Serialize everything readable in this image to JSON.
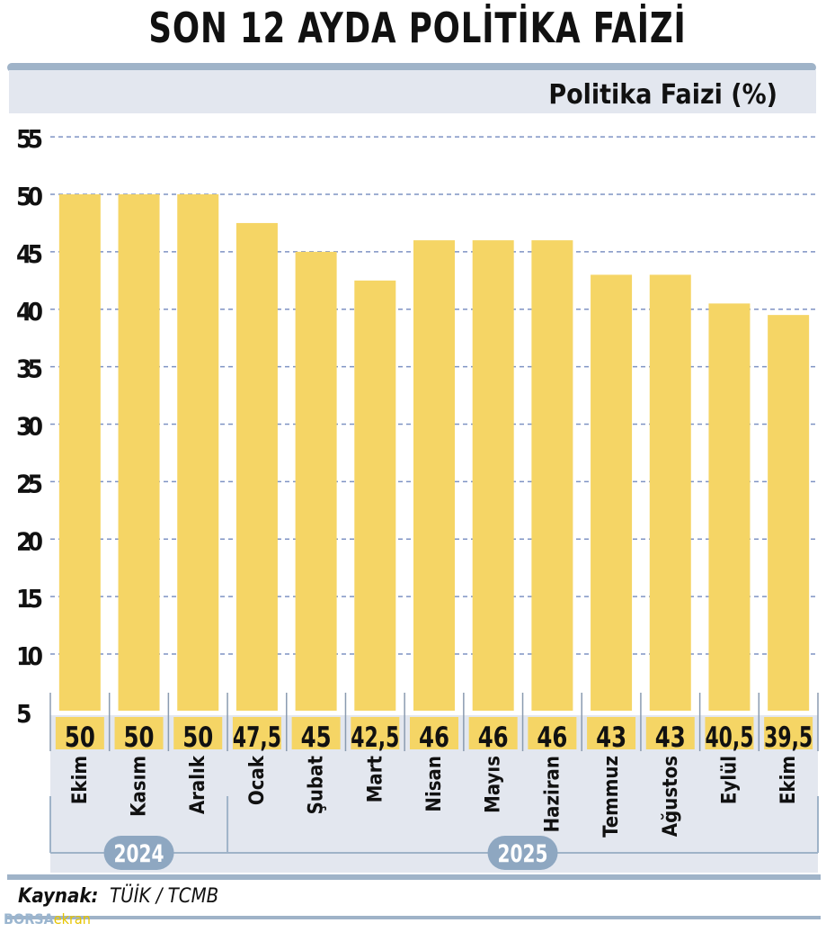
{
  "title": "SON 12 AYDA POLİTİKA FAİZİ",
  "source": {
    "label": "Kaynak:",
    "text": "TÜİK / TCMB"
  },
  "logo": {
    "part1": "BORSA",
    "part2": "ekran"
  },
  "colors": {
    "bar": "#f5d565",
    "panel": "#e3e7ef",
    "frame": "#9fb3c8",
    "grid": "#7f93c4",
    "year_badge": "#8ea7c1"
  },
  "chart_data": {
    "type": "bar",
    "ylabel": "Politika Faizi (%)",
    "xlabel": "",
    "ylim": [
      0,
      55
    ],
    "yticks": [
      5,
      10,
      15,
      20,
      25,
      30,
      35,
      40,
      45,
      50,
      55
    ],
    "grid": true,
    "categories": [
      "Ekim",
      "Kasım",
      "Aralık",
      "Ocak",
      "Şubat",
      "Mart",
      "Nisan",
      "Mayıs",
      "Haziran",
      "Temmuz",
      "Ağustos",
      "Eylül",
      "Ekim"
    ],
    "value_labels": [
      "50",
      "50",
      "50",
      "47,5",
      "45",
      "42,5",
      "46",
      "46",
      "46",
      "43",
      "43",
      "40,5",
      "39,5"
    ],
    "values": [
      50,
      50,
      50,
      47.5,
      45,
      42.5,
      46,
      46,
      46,
      43,
      43,
      40.5,
      39.5
    ],
    "year_groups": [
      {
        "label": "2024",
        "months": 3
      },
      {
        "label": "2025",
        "months": 10
      }
    ]
  }
}
